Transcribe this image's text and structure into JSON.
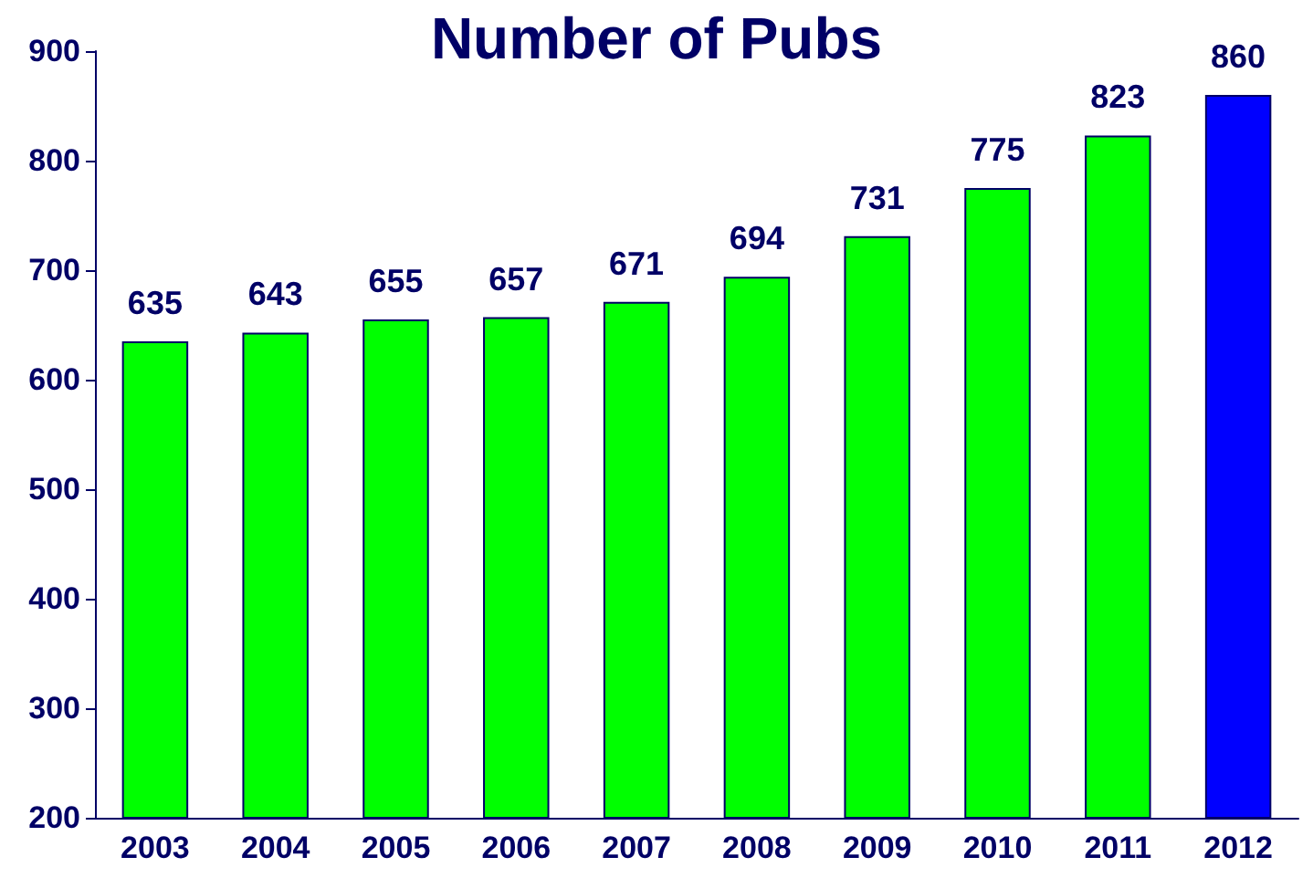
{
  "chart_data": {
    "type": "bar",
    "title": "Number of Pubs",
    "categories": [
      "2003",
      "2004",
      "2005",
      "2006",
      "2007",
      "2008",
      "2009",
      "2010",
      "2011",
      "2012"
    ],
    "values": [
      635,
      643,
      655,
      657,
      671,
      694,
      731,
      775,
      823,
      860
    ],
    "colors": [
      "#00ff00",
      "#00ff00",
      "#00ff00",
      "#00ff00",
      "#00ff00",
      "#00ff00",
      "#00ff00",
      "#00ff00",
      "#00ff00",
      "#0000ff"
    ],
    "ylim": [
      200,
      900
    ],
    "yticks": [
      200,
      300,
      400,
      500,
      600,
      700,
      800,
      900
    ],
    "grid": false,
    "data_labels": true
  }
}
